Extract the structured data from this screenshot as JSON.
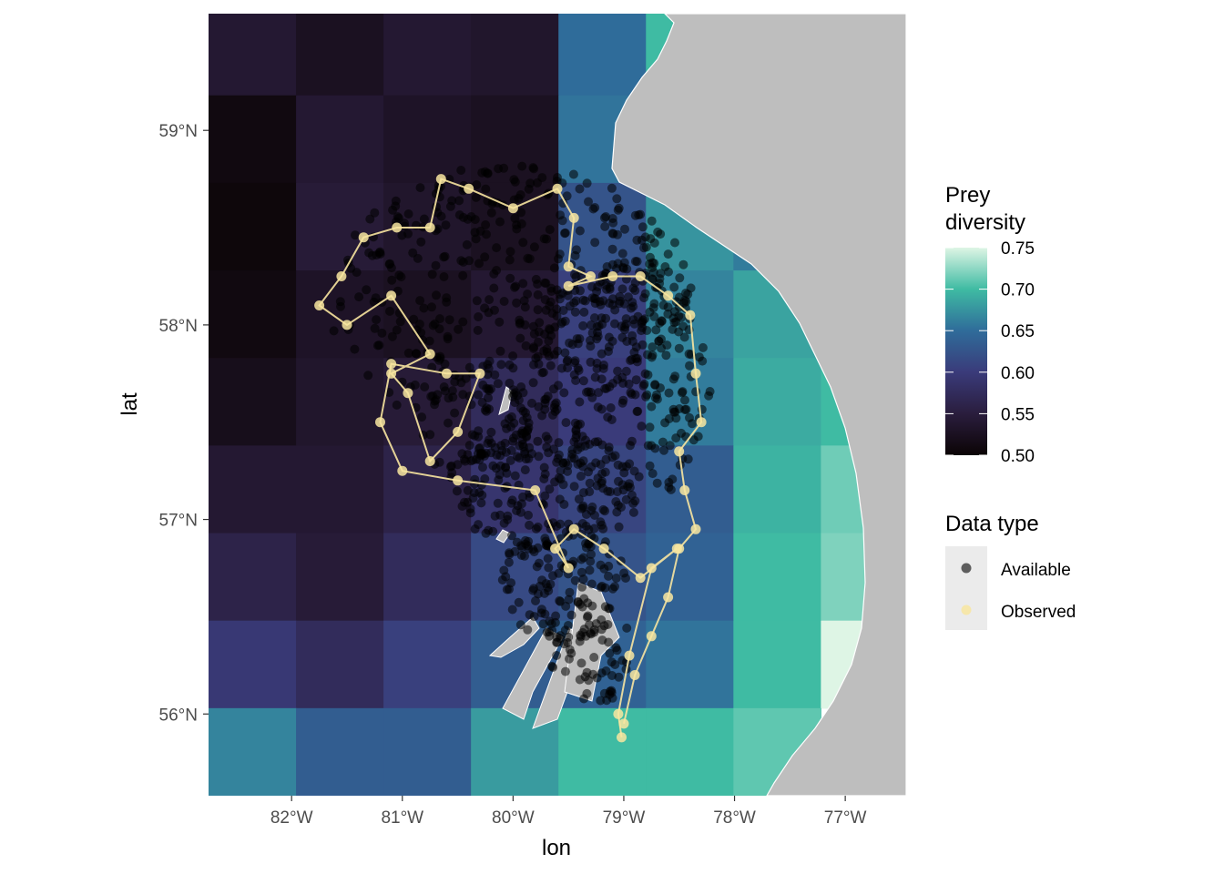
{
  "chart_data": {
    "type": "map",
    "x_axis": {
      "title": "lon",
      "ticks": [
        {
          "value": -82,
          "label": "82°W"
        },
        {
          "value": -81,
          "label": "81°W"
        },
        {
          "value": -80,
          "label": "80°W"
        },
        {
          "value": -79,
          "label": "79°W"
        },
        {
          "value": -78,
          "label": "78°W"
        },
        {
          "value": -77,
          "label": "77°W"
        }
      ],
      "range": [
        -82.75,
        -76.45
      ]
    },
    "y_axis": {
      "title": "lat",
      "ticks": [
        {
          "value": 56,
          "label": "56°N"
        },
        {
          "value": 57,
          "label": "57°N"
        },
        {
          "value": 58,
          "label": "58°N"
        },
        {
          "value": 59,
          "label": "59°N"
        }
      ],
      "range": [
        55.58,
        59.6
      ]
    },
    "raster": {
      "lon_edges": [
        -82.75,
        -81.96,
        -81.17,
        -80.38,
        -79.59,
        -78.8,
        -78.01,
        -77.22,
        -76.45
      ],
      "lat_edges": [
        55.58,
        56.03,
        56.48,
        56.93,
        57.38,
        57.83,
        58.28,
        58.73,
        59.18,
        59.6
      ],
      "values_top_to_bottom": [
        [
          0.54,
          0.525,
          0.54,
          0.535,
          0.65,
          0.7,
          null,
          null
        ],
        [
          0.51,
          0.54,
          0.53,
          0.525,
          0.655,
          0.665,
          null,
          null
        ],
        [
          0.505,
          0.545,
          0.535,
          0.525,
          0.625,
          0.675,
          0.66,
          null
        ],
        [
          0.51,
          0.53,
          0.525,
          0.54,
          0.605,
          0.665,
          0.685,
          null
        ],
        [
          0.52,
          0.535,
          0.545,
          0.575,
          0.6,
          0.66,
          0.69,
          0.7
        ],
        [
          0.54,
          0.54,
          0.56,
          0.59,
          0.61,
          0.635,
          0.695,
          0.715
        ],
        [
          0.56,
          0.545,
          0.575,
          0.615,
          0.625,
          0.64,
          0.7,
          0.72
        ],
        [
          0.595,
          0.575,
          0.605,
          0.635,
          0.64,
          0.655,
          0.7,
          0.75
        ],
        [
          0.665,
          0.635,
          0.635,
          0.68,
          0.7,
          0.7,
          0.71,
          null
        ]
      ]
    },
    "legend_fill": {
      "title_lines": [
        "Prey",
        "diversity"
      ],
      "breaks": [
        "0.75",
        "0.70",
        "0.65",
        "0.60",
        "0.55",
        "0.50"
      ],
      "range": [
        0.5,
        0.75
      ],
      "palette": "mako"
    },
    "legend_shape": {
      "title": "Data type",
      "items": [
        {
          "label": "Available",
          "color": "#000000",
          "alpha": 0.6
        },
        {
          "label": "Observed",
          "color": "#f8e6a0",
          "alpha": 0.85
        }
      ]
    },
    "track": {
      "series": "Observed",
      "points": [
        [
          -79.02,
          55.88
        ],
        [
          -79.05,
          56.0
        ],
        [
          -78.95,
          56.3
        ],
        [
          -78.75,
          56.75
        ],
        [
          -78.52,
          56.85
        ],
        [
          -78.85,
          56.7
        ],
        [
          -79.18,
          56.85
        ],
        [
          -79.45,
          56.95
        ],
        [
          -79.62,
          56.85
        ],
        [
          -79.5,
          56.75
        ],
        [
          -79.8,
          57.15
        ],
        [
          -80.5,
          57.2
        ],
        [
          -81.0,
          57.25
        ],
        [
          -81.2,
          57.5
        ],
        [
          -81.1,
          57.8
        ],
        [
          -80.6,
          57.75
        ],
        [
          -80.3,
          57.75
        ],
        [
          -80.5,
          57.45
        ],
        [
          -80.75,
          57.3
        ],
        [
          -80.95,
          57.65
        ],
        [
          -81.1,
          57.75
        ],
        [
          -80.75,
          57.85
        ],
        [
          -81.1,
          58.15
        ],
        [
          -81.5,
          58.0
        ],
        [
          -81.75,
          58.1
        ],
        [
          -81.55,
          58.25
        ],
        [
          -81.35,
          58.45
        ],
        [
          -81.05,
          58.5
        ],
        [
          -80.75,
          58.5
        ],
        [
          -80.65,
          58.75
        ],
        [
          -80.4,
          58.7
        ],
        [
          -80.0,
          58.6
        ],
        [
          -79.6,
          58.7
        ],
        [
          -79.45,
          58.55
        ],
        [
          -79.5,
          58.3
        ],
        [
          -79.3,
          58.25
        ],
        [
          -79.5,
          58.2
        ],
        [
          -79.1,
          58.25
        ],
        [
          -78.85,
          58.25
        ],
        [
          -78.6,
          58.15
        ],
        [
          -78.4,
          58.05
        ],
        [
          -78.35,
          57.75
        ],
        [
          -78.3,
          57.5
        ],
        [
          -78.5,
          57.35
        ],
        [
          -78.45,
          57.15
        ],
        [
          -78.35,
          56.95
        ],
        [
          -78.5,
          56.85
        ],
        [
          -78.6,
          56.6
        ],
        [
          -78.75,
          56.4
        ],
        [
          -78.9,
          56.2
        ],
        [
          -79.0,
          55.95
        ]
      ]
    }
  }
}
